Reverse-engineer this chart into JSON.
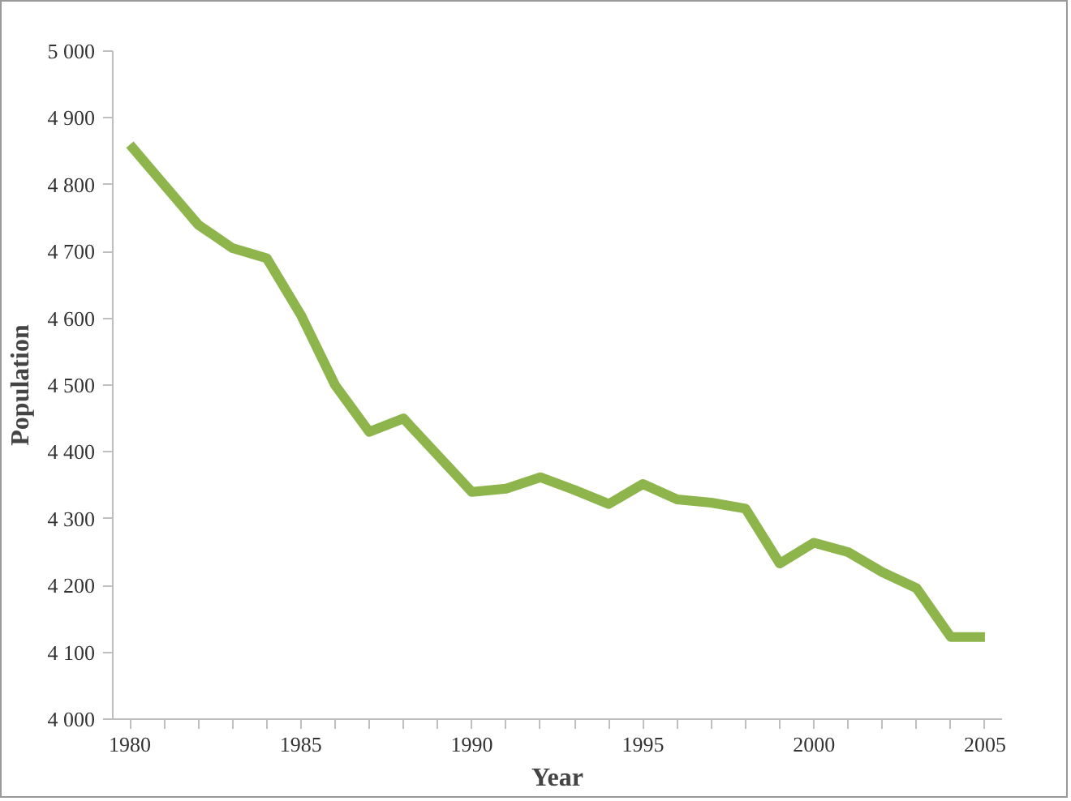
{
  "chart_data": {
    "type": "line",
    "xlabel": "Year",
    "ylabel": "Population",
    "x": [
      1980,
      1981,
      1982,
      1983,
      1984,
      1985,
      1986,
      1987,
      1988,
      1989,
      1990,
      1991,
      1992,
      1993,
      1994,
      1995,
      1996,
      1997,
      1998,
      1999,
      2000,
      2001,
      2002,
      2003,
      2004,
      2005
    ],
    "series": [
      {
        "color": "#8db54b",
        "values": [
          4860,
          4800,
          4740,
          4705,
          4690,
          4605,
          4500,
          4430,
          4450,
          4395,
          4340,
          4345,
          4362,
          4343,
          4322,
          4352,
          4329,
          4324,
          4315,
          4233,
          4264,
          4250,
          4220,
          4196,
          4123,
          4123
        ]
      }
    ],
    "xlim": [
      1979.5,
      2005.5
    ],
    "xticks": [
      {
        "value": 1980,
        "label": "1980"
      },
      {
        "value": 1981,
        "label": null
      },
      {
        "value": 1982,
        "label": null
      },
      {
        "value": 1983,
        "label": null
      },
      {
        "value": 1984,
        "label": null
      },
      {
        "value": 1985,
        "label": "1985"
      },
      {
        "value": 1986,
        "label": null
      },
      {
        "value": 1987,
        "label": null
      },
      {
        "value": 1988,
        "label": null
      },
      {
        "value": 1989,
        "label": null
      },
      {
        "value": 1990,
        "label": "1990"
      },
      {
        "value": 1991,
        "label": null
      },
      {
        "value": 1992,
        "label": null
      },
      {
        "value": 1993,
        "label": null
      },
      {
        "value": 1994,
        "label": null
      },
      {
        "value": 1995,
        "label": "1995"
      },
      {
        "value": 1996,
        "label": null
      },
      {
        "value": 1997,
        "label": null
      },
      {
        "value": 1998,
        "label": null
      },
      {
        "value": 1999,
        "label": null
      },
      {
        "value": 2000,
        "label": "2000"
      },
      {
        "value": 2001,
        "label": null
      },
      {
        "value": 2002,
        "label": null
      },
      {
        "value": 2003,
        "label": null
      },
      {
        "value": 2004,
        "label": null
      },
      {
        "value": 2005,
        "label": "2005"
      }
    ],
    "ylim": [
      4000,
      5000
    ],
    "yticks": [
      {
        "value": 4000,
        "label": "4 000"
      },
      {
        "value": 4100,
        "label": "4 100"
      },
      {
        "value": 4200,
        "label": "4 200"
      },
      {
        "value": 4300,
        "label": "4 300"
      },
      {
        "value": 4400,
        "label": "4 400"
      },
      {
        "value": 4500,
        "label": "4 500"
      },
      {
        "value": 4600,
        "label": "4 600"
      },
      {
        "value": 4700,
        "label": "4 700"
      },
      {
        "value": 4800,
        "label": "4 800"
      },
      {
        "value": 4900,
        "label": "4 900"
      },
      {
        "value": 5000,
        "label": "5 000"
      }
    ],
    "grid": false,
    "marker": "none",
    "line_style": "solid"
  }
}
